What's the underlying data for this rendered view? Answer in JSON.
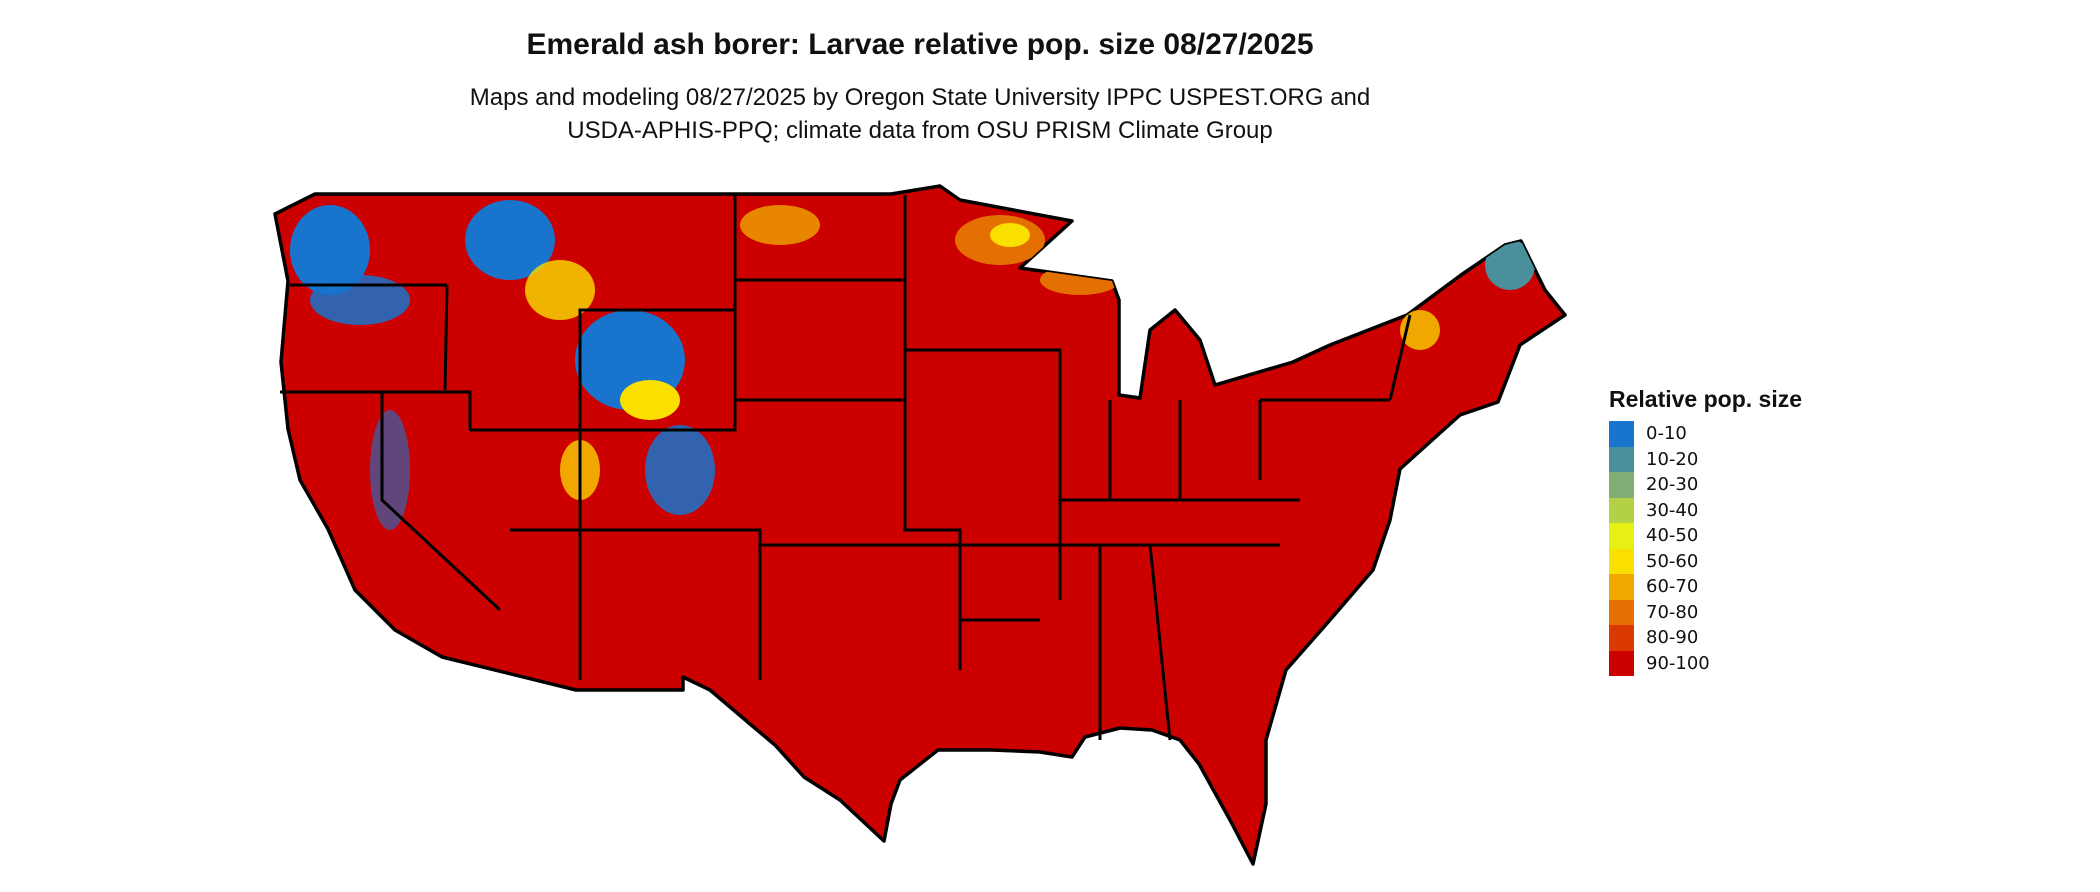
{
  "title": "Emerald ash borer: Larvae relative pop. size 08/27/2025",
  "subtitle_lines": [
    "Maps and modeling 08/27/2025 by Oregon State University IPPC USPEST.ORG and",
    "USDA-APHIS-PPQ; climate data from OSU PRISM Climate Group"
  ],
  "map": {
    "region": "Contiguous United States",
    "dominant_class": "90-100",
    "low_value_areas": "Mountainous West, northern Great Lakes, northern New England",
    "border_color": "#000000"
  },
  "legend": {
    "title": "Relative pop. size",
    "items": [
      {
        "label": "0-10",
        "color": "#1874CD"
      },
      {
        "label": "10-20",
        "color": "#4A8F9C"
      },
      {
        "label": "20-30",
        "color": "#7FAF74"
      },
      {
        "label": "30-40",
        "color": "#B3D146"
      },
      {
        "label": "40-50",
        "color": "#E6F014"
      },
      {
        "label": "50-60",
        "color": "#F9E000"
      },
      {
        "label": "60-70",
        "color": "#F0A800"
      },
      {
        "label": "70-80",
        "color": "#E37000"
      },
      {
        "label": "80-90",
        "color": "#DA3A00"
      },
      {
        "label": "90-100",
        "color": "#CD0000"
      }
    ]
  }
}
